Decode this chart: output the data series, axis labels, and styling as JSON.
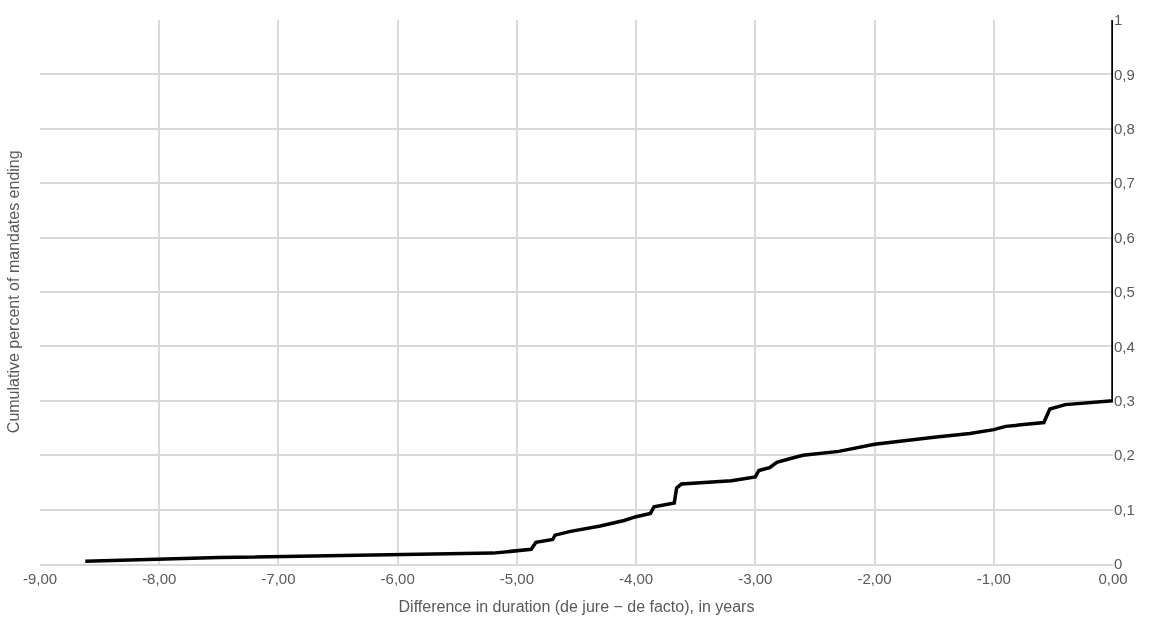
{
  "chart_data": {
    "type": "line",
    "xlabel": "Difference in duration (de jure − de facto), in years",
    "ylabel": "Cumulative percent of mandates ending",
    "series": [
      {
        "color": "#000000",
        "x": [
          -8.62,
          -7.5,
          -5.2,
          -4.88,
          -4.84,
          -4.7,
          -4.68,
          -4.55,
          -4.3,
          -4.1,
          -4.0,
          -3.88,
          -3.85,
          -3.68,
          -3.66,
          -3.62,
          -3.2,
          -3.0,
          -2.97,
          -2.88,
          -2.82,
          -2.72,
          -2.6,
          -2.3,
          -2.0,
          -1.5,
          -1.2,
          -1.0,
          -0.9,
          -0.58,
          -0.53,
          -0.4,
          0,
          0
        ],
        "values": [
          0.005,
          0.012,
          0.02,
          0.027,
          0.04,
          0.045,
          0.053,
          0.06,
          0.07,
          0.08,
          0.087,
          0.093,
          0.105,
          0.112,
          0.14,
          0.147,
          0.153,
          0.16,
          0.172,
          0.177,
          0.187,
          0.193,
          0.2,
          0.207,
          0.22,
          0.233,
          0.24,
          0.247,
          0.253,
          0.26,
          0.285,
          0.293,
          0.3,
          1
        ]
      }
    ],
    "xlim": [
      -9,
      0
    ],
    "xticks": [
      {
        "value": -9,
        "label": "-9,00"
      },
      {
        "value": -8,
        "label": "-8,00"
      },
      {
        "value": -7,
        "label": "-7,00"
      },
      {
        "value": -6,
        "label": "-6,00"
      },
      {
        "value": -5,
        "label": "-5,00"
      },
      {
        "value": -4,
        "label": "-4,00"
      },
      {
        "value": -3,
        "label": "-3,00"
      },
      {
        "value": -2,
        "label": "-2,00"
      },
      {
        "value": -1,
        "label": "-1,00"
      },
      {
        "value": 0,
        "label": "0,00"
      }
    ],
    "ylim": [
      0,
      1
    ],
    "yticks": [
      0,
      {
        "value": 0.1,
        "label": "0,1"
      },
      {
        "value": 0.2,
        "label": "0,2"
      },
      {
        "value": 0.3,
        "label": "0,3"
      },
      {
        "value": 0.4,
        "label": "0,4"
      },
      {
        "value": 0.5,
        "label": "0,5"
      },
      {
        "value": 0.6,
        "label": "0,6"
      },
      {
        "value": 0.7,
        "label": "0,7"
      },
      {
        "value": 0.8,
        "label": "0,8"
      },
      {
        "value": 0.9,
        "label": "0,9"
      },
      1
    ],
    "grid": true,
    "marker": "none",
    "line_style": "solid"
  }
}
